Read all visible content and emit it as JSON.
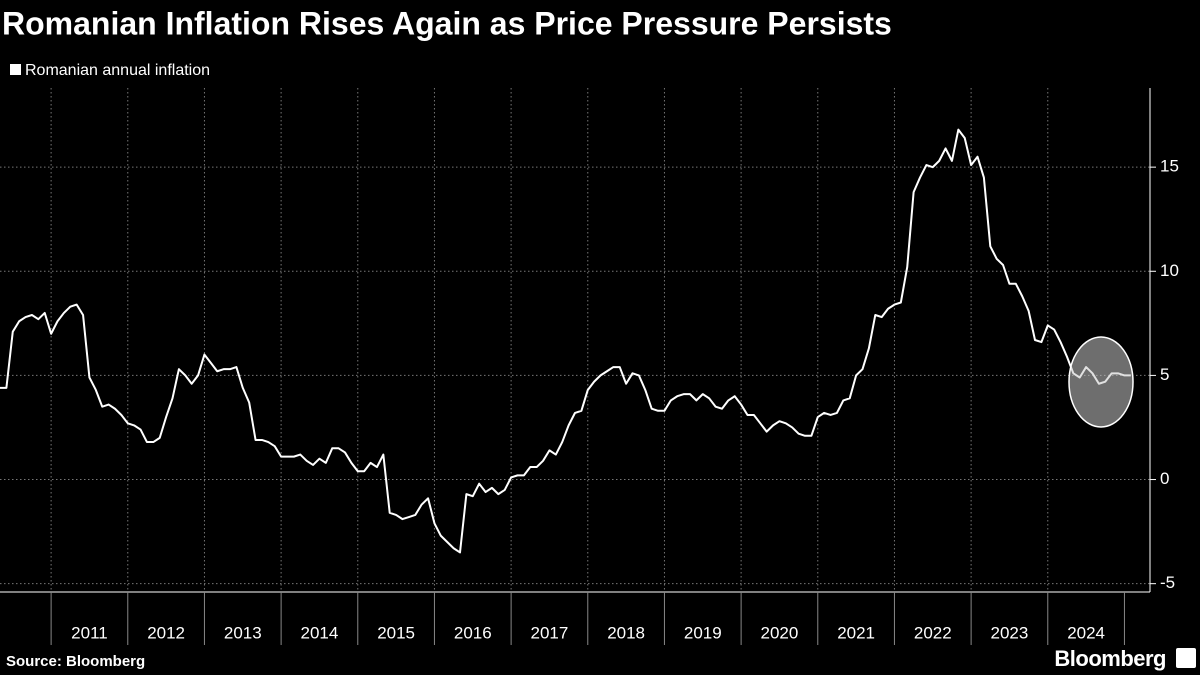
{
  "chart_data": {
    "type": "line",
    "title": "Romanian Inflation Rises Again as Price Pressure Persists",
    "source": "Source: Bloomberg",
    "brand": "Bloomberg",
    "x": [
      "2010-05",
      "2010-06",
      "2010-07",
      "2010-08",
      "2010-09",
      "2010-10",
      "2010-11",
      "2010-12",
      "2011-01",
      "2011-02",
      "2011-03",
      "2011-04",
      "2011-05",
      "2011-06",
      "2011-07",
      "2011-08",
      "2011-09",
      "2011-10",
      "2011-11",
      "2011-12",
      "2012-01",
      "2012-02",
      "2012-03",
      "2012-04",
      "2012-05",
      "2012-06",
      "2012-07",
      "2012-08",
      "2012-09",
      "2012-10",
      "2012-11",
      "2012-12",
      "2013-01",
      "2013-02",
      "2013-03",
      "2013-04",
      "2013-05",
      "2013-06",
      "2013-07",
      "2013-08",
      "2013-09",
      "2013-10",
      "2013-11",
      "2013-12",
      "2014-01",
      "2014-02",
      "2014-03",
      "2014-04",
      "2014-05",
      "2014-06",
      "2014-07",
      "2014-08",
      "2014-09",
      "2014-10",
      "2014-11",
      "2014-12",
      "2015-01",
      "2015-02",
      "2015-03",
      "2015-04",
      "2015-05",
      "2015-06",
      "2015-07",
      "2015-08",
      "2015-09",
      "2015-10",
      "2015-11",
      "2015-12",
      "2016-01",
      "2016-02",
      "2016-03",
      "2016-04",
      "2016-05",
      "2016-06",
      "2016-07",
      "2016-08",
      "2016-09",
      "2016-10",
      "2016-11",
      "2016-12",
      "2017-01",
      "2017-02",
      "2017-03",
      "2017-04",
      "2017-05",
      "2017-06",
      "2017-07",
      "2017-08",
      "2017-09",
      "2017-10",
      "2017-11",
      "2017-12",
      "2018-01",
      "2018-02",
      "2018-03",
      "2018-04",
      "2018-05",
      "2018-06",
      "2018-07",
      "2018-08",
      "2018-09",
      "2018-10",
      "2018-11",
      "2018-12",
      "2019-01",
      "2019-02",
      "2019-03",
      "2019-04",
      "2019-05",
      "2019-06",
      "2019-07",
      "2019-08",
      "2019-09",
      "2019-10",
      "2019-11",
      "2019-12",
      "2020-01",
      "2020-02",
      "2020-03",
      "2020-04",
      "2020-05",
      "2020-06",
      "2020-07",
      "2020-08",
      "2020-09",
      "2020-10",
      "2020-11",
      "2020-12",
      "2021-01",
      "2021-02",
      "2021-03",
      "2021-04",
      "2021-05",
      "2021-06",
      "2021-07",
      "2021-08",
      "2021-09",
      "2021-10",
      "2021-11",
      "2021-12",
      "2022-01",
      "2022-02",
      "2022-03",
      "2022-04",
      "2022-05",
      "2022-06",
      "2022-07",
      "2022-08",
      "2022-09",
      "2022-10",
      "2022-11",
      "2022-12",
      "2023-01",
      "2023-02",
      "2023-03",
      "2023-04",
      "2023-05",
      "2023-06",
      "2023-07",
      "2023-08",
      "2023-09",
      "2023-10",
      "2023-11",
      "2023-12",
      "2024-01",
      "2024-02",
      "2024-03",
      "2024-04",
      "2024-05",
      "2024-06",
      "2024-07",
      "2024-08",
      "2024-09",
      "2024-10",
      "2024-11",
      "2024-12",
      "2025-01",
      "2025-02"
    ],
    "series": [
      {
        "name": "Romanian annual inflation",
        "color": "#ffffff",
        "values": [
          4.4,
          4.4,
          7.1,
          7.6,
          7.8,
          7.9,
          7.7,
          8.0,
          7.0,
          7.6,
          8.0,
          8.3,
          8.4,
          7.9,
          4.9,
          4.3,
          3.5,
          3.6,
          3.4,
          3.1,
          2.7,
          2.6,
          2.4,
          1.8,
          1.8,
          2.0,
          3.0,
          3.9,
          5.3,
          5.0,
          4.6,
          5.0,
          6.0,
          5.6,
          5.2,
          5.3,
          5.3,
          5.4,
          4.4,
          3.7,
          1.9,
          1.9,
          1.8,
          1.6,
          1.1,
          1.1,
          1.1,
          1.2,
          0.9,
          0.7,
          1.0,
          0.8,
          1.5,
          1.5,
          1.3,
          0.8,
          0.4,
          0.4,
          0.8,
          0.6,
          1.2,
          -1.6,
          -1.7,
          -1.9,
          -1.8,
          -1.7,
          -1.2,
          -0.9,
          -2.1,
          -2.7,
          -3.0,
          -3.3,
          -3.5,
          -0.7,
          -0.8,
          -0.2,
          -0.6,
          -0.4,
          -0.7,
          -0.5,
          0.1,
          0.2,
          0.2,
          0.6,
          0.6,
          0.9,
          1.4,
          1.2,
          1.8,
          2.6,
          3.2,
          3.3,
          4.3,
          4.7,
          5.0,
          5.2,
          5.4,
          5.4,
          4.6,
          5.1,
          5.0,
          4.3,
          3.4,
          3.3,
          3.3,
          3.8,
          4.0,
          4.1,
          4.1,
          3.8,
          4.1,
          3.9,
          3.5,
          3.4,
          3.8,
          4.0,
          3.6,
          3.1,
          3.1,
          2.7,
          2.3,
          2.6,
          2.8,
          2.7,
          2.5,
          2.2,
          2.1,
          2.1,
          3.0,
          3.2,
          3.1,
          3.2,
          3.8,
          3.9,
          5.0,
          5.3,
          6.3,
          7.9,
          7.8,
          8.2,
          8.4,
          8.5,
          10.2,
          13.8,
          14.5,
          15.1,
          15.0,
          15.3,
          15.9,
          15.3,
          16.8,
          16.4,
          15.1,
          15.5,
          14.5,
          11.2,
          10.6,
          10.3,
          9.4,
          9.4,
          8.8,
          8.1,
          6.7,
          6.6,
          7.4,
          7.2,
          6.6,
          5.9,
          5.1,
          4.9,
          5.4,
          5.1,
          4.6,
          4.7,
          5.1,
          5.1,
          5.0,
          5.0
        ]
      }
    ],
    "xlim": [
      "2010-05",
      "2025-05"
    ],
    "xticks": [
      "2011",
      "2012",
      "2013",
      "2014",
      "2015",
      "2016",
      "2017",
      "2018",
      "2019",
      "2020",
      "2021",
      "2022",
      "2023",
      "2024"
    ],
    "ylim": [
      -5.4,
      18.8
    ],
    "yticks": [
      -5,
      0,
      5,
      10,
      15
    ],
    "grid": true
  }
}
